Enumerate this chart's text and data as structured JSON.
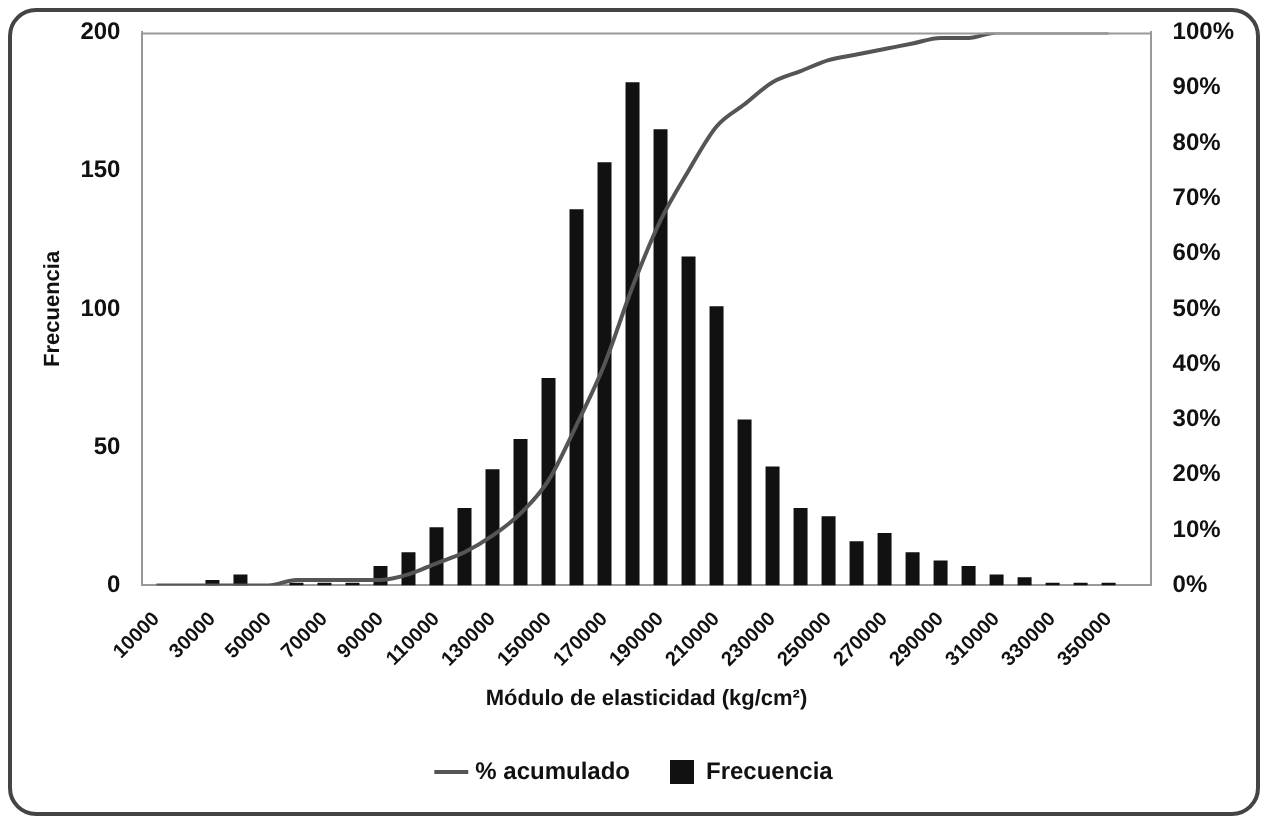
{
  "chart_data": {
    "type": "bar",
    "xlabel": "Módulo de elasticidad (kg/cm²)",
    "ylabel": "Frecuencia",
    "categories": [
      "10000",
      null,
      "30000",
      null,
      "50000",
      null,
      "70000",
      null,
      "90000",
      null,
      "110000",
      null,
      "130000",
      null,
      "150000",
      null,
      "170000",
      null,
      "190000",
      null,
      "210000",
      null,
      "230000",
      null,
      "250000",
      null,
      "270000",
      null,
      "290000",
      null,
      "310000",
      null,
      "330000",
      null,
      "350000",
      null
    ],
    "series": [
      {
        "name": "Frecuencia",
        "color": "#111111",
        "values": [
          0,
          0,
          2,
          4,
          0,
          1,
          1,
          1,
          7,
          12,
          21,
          28,
          42,
          53,
          75,
          136,
          153,
          182,
          165,
          119,
          101,
          60,
          43,
          28,
          25,
          16,
          19,
          12,
          9,
          7,
          4,
          3,
          1,
          1,
          1,
          0
        ]
      },
      {
        "name": "% acumulado",
        "type": "line",
        "axis": "y2",
        "color": "#555555",
        "values": [
          0,
          0,
          0,
          0,
          0,
          1,
          1,
          1,
          1,
          2,
          4,
          6,
          9,
          13,
          19,
          29,
          40,
          54,
          66,
          75,
          83,
          87,
          91,
          93,
          95,
          96,
          97,
          98,
          99,
          99,
          100,
          100,
          100,
          100,
          100,
          null
        ]
      }
    ],
    "ylim": [
      0,
      200
    ],
    "yticks": [
      0,
      50,
      100,
      150,
      200
    ],
    "y2lim": [
      0,
      100
    ],
    "y2ticks": [
      {
        "value": 0,
        "label": "0%"
      },
      {
        "value": 10,
        "label": "10%"
      },
      {
        "value": 20,
        "label": "20%"
      },
      {
        "value": 30,
        "label": "30%"
      },
      {
        "value": 40,
        "label": "40%"
      },
      {
        "value": 50,
        "label": "50%"
      },
      {
        "value": 60,
        "label": "60%"
      },
      {
        "value": 70,
        "label": "70%"
      },
      {
        "value": 80,
        "label": "80%"
      },
      {
        "value": 90,
        "label": "90%"
      },
      {
        "value": 100,
        "label": "100%"
      }
    ],
    "grid": false,
    "legend": "bottom",
    "marker": "none",
    "line_style": "solid"
  }
}
